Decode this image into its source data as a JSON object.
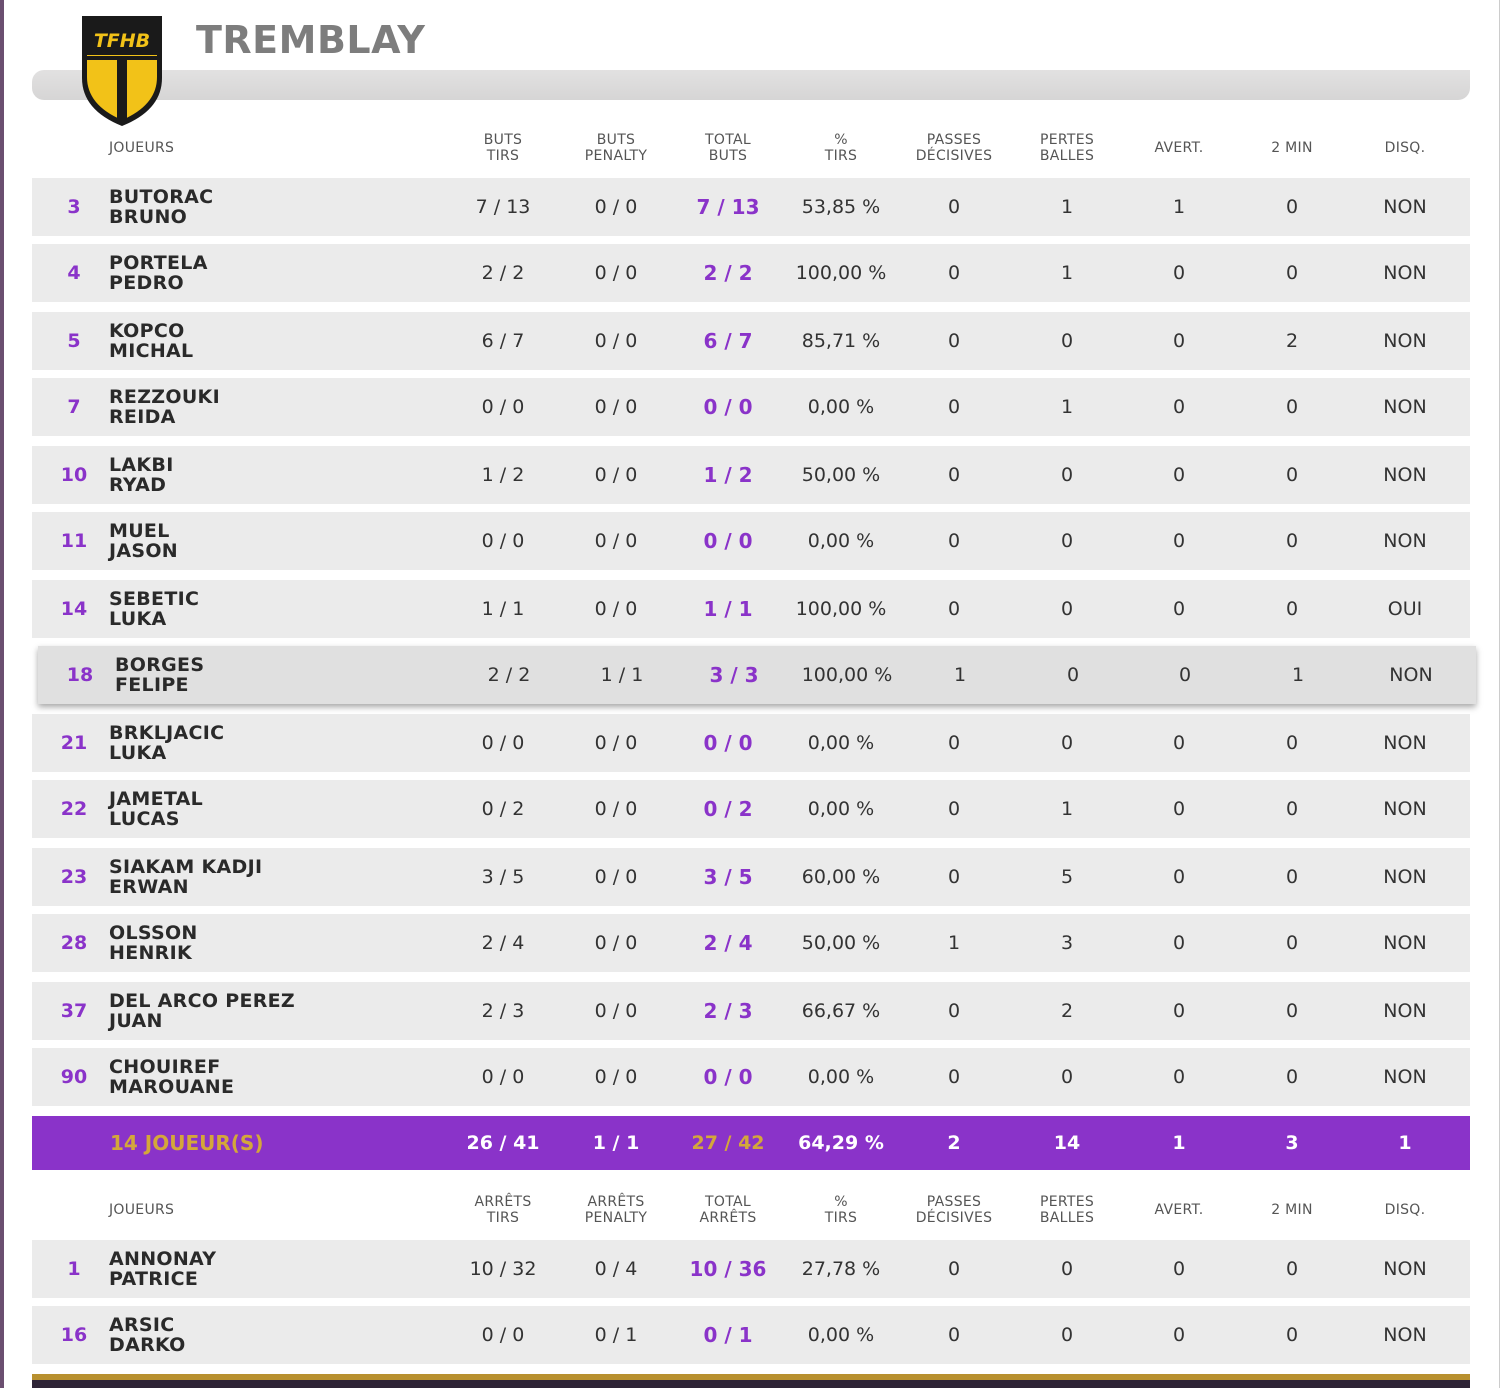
{
  "team": {
    "name": "TREMBLAY",
    "logo_text": "TFHB"
  },
  "field_header": {
    "players": "JOUEURS",
    "cols": [
      [
        "BUTS",
        "TIRS"
      ],
      [
        "BUTS",
        "PENALTY"
      ],
      [
        "TOTAL",
        "BUTS"
      ],
      [
        "%",
        "TIRS"
      ],
      [
        "PASSES",
        "DÉCISIVES"
      ],
      [
        "PERTES",
        "BALLES"
      ],
      [
        "AVERT.",
        ""
      ],
      [
        "2 MIN",
        ""
      ],
      [
        "DISQ.",
        ""
      ]
    ]
  },
  "players": [
    {
      "num": "3",
      "last": "BUTORAC",
      "first": "BRUNO",
      "v": [
        "7 / 13",
        "0 / 0",
        "7 / 13",
        "53,85 %",
        "0",
        "1",
        "1",
        "0",
        "NON"
      ]
    },
    {
      "num": "4",
      "last": "PORTELA",
      "first": "PEDRO",
      "v": [
        "2 / 2",
        "0 / 0",
        "2 / 2",
        "100,00 %",
        "0",
        "1",
        "0",
        "0",
        "NON"
      ]
    },
    {
      "num": "5",
      "last": "KOPCO",
      "first": "MICHAL",
      "v": [
        "6 / 7",
        "0 / 0",
        "6 / 7",
        "85,71 %",
        "0",
        "0",
        "0",
        "2",
        "NON"
      ]
    },
    {
      "num": "7",
      "last": "REZZOUKI",
      "first": "REIDA",
      "v": [
        "0 / 0",
        "0 / 0",
        "0 / 0",
        "0,00 %",
        "0",
        "1",
        "0",
        "0",
        "NON"
      ]
    },
    {
      "num": "10",
      "last": "LAKBI",
      "first": "RYAD",
      "v": [
        "1 / 2",
        "0 / 0",
        "1 / 2",
        "50,00 %",
        "0",
        "0",
        "0",
        "0",
        "NON"
      ]
    },
    {
      "num": "11",
      "last": "MUEL",
      "first": "JASON",
      "v": [
        "0 / 0",
        "0 / 0",
        "0 / 0",
        "0,00 %",
        "0",
        "0",
        "0",
        "0",
        "NON"
      ]
    },
    {
      "num": "14",
      "last": "SEBETIC",
      "first": "LUKA",
      "v": [
        "1 / 1",
        "0 / 0",
        "1 / 1",
        "100,00 %",
        "0",
        "0",
        "0",
        "0",
        "OUI"
      ]
    },
    {
      "num": "18",
      "last": "BORGES",
      "first": "FELIPE",
      "v": [
        "2 / 2",
        "1 / 1",
        "3 / 3",
        "100,00 %",
        "1",
        "0",
        "0",
        "1",
        "NON"
      ]
    },
    {
      "num": "21",
      "last": "BRKLJACIC",
      "first": "LUKA",
      "v": [
        "0 / 0",
        "0 / 0",
        "0 / 0",
        "0,00 %",
        "0",
        "0",
        "0",
        "0",
        "NON"
      ]
    },
    {
      "num": "22",
      "last": "JAMETAL",
      "first": "LUCAS",
      "v": [
        "0 / 2",
        "0 / 0",
        "0 / 2",
        "0,00 %",
        "0",
        "1",
        "0",
        "0",
        "NON"
      ]
    },
    {
      "num": "23",
      "last": "SIAKAM KADJI",
      "first": "ERWAN",
      "v": [
        "3 / 5",
        "0 / 0",
        "3 / 5",
        "60,00 %",
        "0",
        "5",
        "0",
        "0",
        "NON"
      ]
    },
    {
      "num": "28",
      "last": "OLSSON",
      "first": "HENRIK",
      "v": [
        "2 / 4",
        "0 / 0",
        "2 / 4",
        "50,00 %",
        "1",
        "3",
        "0",
        "0",
        "NON"
      ]
    },
    {
      "num": "37",
      "last": "DEL ARCO PEREZ",
      "first": "JUAN",
      "v": [
        "2 / 3",
        "0 / 0",
        "2 / 3",
        "66,67 %",
        "0",
        "2",
        "0",
        "0",
        "NON"
      ]
    },
    {
      "num": "90",
      "last": "CHOUIREF",
      "first": "MAROUANE",
      "v": [
        "0 / 0",
        "0 / 0",
        "0 / 0",
        "0,00 %",
        "0",
        "0",
        "0",
        "0",
        "NON"
      ]
    }
  ],
  "totals": {
    "label": "14 JOUEUR(S)",
    "v": [
      "26 / 41",
      "1 / 1",
      "27 / 42",
      "64,29 %",
      "2",
      "14",
      "1",
      "3",
      "1"
    ]
  },
  "gk_header": {
    "players": "JOUEURS",
    "cols": [
      [
        "ARRÊTS",
        "TIRS"
      ],
      [
        "ARRÊTS",
        "PENALTY"
      ],
      [
        "TOTAL",
        "ARRÊTS"
      ],
      [
        "%",
        "TIRS"
      ],
      [
        "PASSES",
        "DÉCISIVES"
      ],
      [
        "PERTES",
        "BALLES"
      ],
      [
        "AVERT.",
        ""
      ],
      [
        "2 MIN",
        ""
      ],
      [
        "DISQ.",
        ""
      ]
    ]
  },
  "goalkeepers": [
    {
      "num": "1",
      "last": "ANNONAY",
      "first": "PATRICE",
      "v": [
        "10 / 32",
        "0 / 4",
        "10 / 36",
        "27,78 %",
        "0",
        "0",
        "0",
        "0",
        "NON"
      ]
    },
    {
      "num": "16",
      "last": "ARSIC",
      "first": "DARKO",
      "v": [
        "0 / 0",
        "0 / 1",
        "0 / 1",
        "0,00 %",
        "0",
        "0",
        "0",
        "0",
        "NON"
      ]
    }
  ],
  "colors": {
    "accent": "#8a33c9",
    "gold": "#d4a73a",
    "row_bg": "#ebebeb"
  },
  "icons": {
    "logo": "club-shield-logo"
  }
}
